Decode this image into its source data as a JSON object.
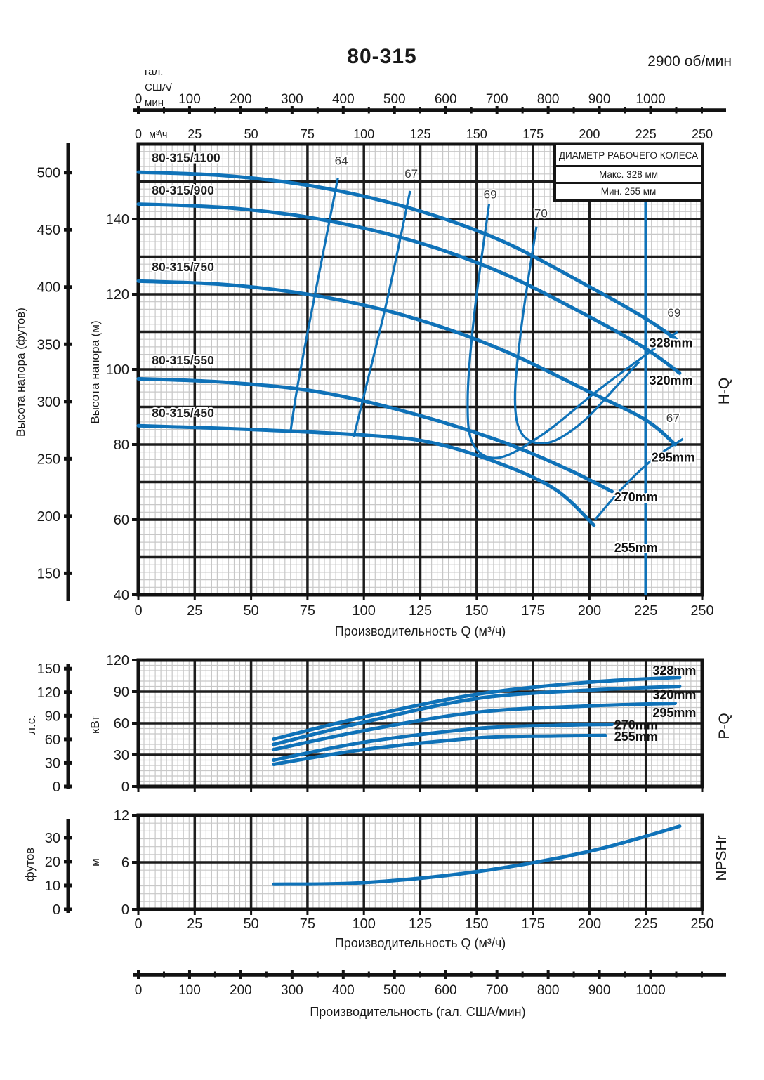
{
  "header": {
    "title": "80-315",
    "rpm": "2900 об/мин"
  },
  "legend": {
    "title": "ДИАМЕТР РАБОЧЕГО КОЛЕСА",
    "max": "Макс. 328 мм",
    "min": "Мин. 255 мм"
  },
  "colors": {
    "curve": "#0f72b8",
    "grid_major": "#1d1d1d",
    "grid_minor": "#c8c8c8",
    "frame": "#121212",
    "text": "#1a1a1a",
    "eff_label": "#3a3a3a"
  },
  "top_axis": {
    "unit_lines": [
      "гал.",
      "США/",
      "мин"
    ],
    "ticks": [
      0,
      100,
      200,
      300,
      400,
      500,
      600,
      700,
      800,
      900,
      1000
    ]
  },
  "m3h_row": {
    "zero": "0",
    "unit": "м³\\ч",
    "ticks": [
      25,
      50,
      75,
      100,
      125,
      150,
      175,
      200,
      225,
      250
    ]
  },
  "axis_titles": {
    "q_m3h": "Производительность Q (м³/ч)"
  },
  "bottom_axis": {
    "ticks": [
      0,
      100,
      200,
      300,
      400,
      500,
      600,
      700,
      800,
      900,
      1000
    ],
    "title": "Производительность (гал. США/мин)"
  },
  "chart_data": [
    {
      "id": "hq",
      "type": "line",
      "side_label": "H-Q",
      "xlabel": "Производительность Q (м³/ч)",
      "x_range": [
        0,
        250
      ],
      "x_ticks": [
        0,
        25,
        50,
        75,
        100,
        125,
        150,
        175,
        200,
        225,
        250
      ],
      "ylabel": "Высота напора (м)",
      "y_range": [
        40,
        160
      ],
      "y_ticks": [
        40,
        60,
        80,
        100,
        120,
        140
      ],
      "y2label": "Высота напора (футов)",
      "y2_ticks": [
        150,
        200,
        250,
        300,
        350,
        400,
        450,
        500
      ],
      "rated_flow": 225,
      "series": [
        {
          "model": "80-315/1100",
          "diameter": "328mm",
          "points": [
            [
              0,
              152.5
            ],
            [
              40,
              151.5
            ],
            [
              80,
              148.5
            ],
            [
              120,
              143
            ],
            [
              160,
              134.5
            ],
            [
              200,
              122
            ],
            [
              225,
              113.5
            ],
            [
              242,
              106.5
            ]
          ],
          "model_label_at": [
            6,
            155.2
          ],
          "dia_label_at": [
            226.5,
            107
          ]
        },
        {
          "model": "80-315/900",
          "diameter": "320mm",
          "points": [
            [
              0,
              144
            ],
            [
              40,
              143
            ],
            [
              80,
              140
            ],
            [
              120,
              134.5
            ],
            [
              160,
              126
            ],
            [
              200,
              114
            ],
            [
              225,
              105.5
            ],
            [
              240,
              99
            ]
          ],
          "model_label_at": [
            6,
            146.5
          ],
          "dia_label_at": [
            226.5,
            97
          ]
        },
        {
          "model": "80-315/750",
          "diameter": "295mm",
          "points": [
            [
              0,
              123.5
            ],
            [
              40,
              122.5
            ],
            [
              80,
              119.5
            ],
            [
              120,
              114
            ],
            [
              160,
              105.5
            ],
            [
              200,
              94
            ],
            [
              225,
              86.5
            ],
            [
              238,
              80
            ]
          ],
          "model_label_at": [
            6,
            126.2
          ],
          "dia_label_at": [
            227.5,
            76.5
          ]
        },
        {
          "model": "80-315/550",
          "diameter": "270mm",
          "points": [
            [
              0,
              97.5
            ],
            [
              40,
              96.5
            ],
            [
              80,
              94
            ],
            [
              120,
              88.5
            ],
            [
              160,
              81
            ],
            [
              190,
              73.5
            ],
            [
              210,
              67.5
            ]
          ],
          "model_label_at": [
            6,
            101.3
          ],
          "dia_label_at": [
            211,
            66
          ]
        },
        {
          "model": "80-315/450",
          "diameter": "255mm",
          "points": [
            [
              0,
              85
            ],
            [
              50,
              84
            ],
            [
              100,
              82.5
            ],
            [
              130,
              80.5
            ],
            [
              160,
              75
            ],
            [
              185,
              68
            ],
            [
              202,
              58.5
            ]
          ],
          "model_label_at": [
            6,
            87.3
          ],
          "dia_label_at": [
            211,
            52.5
          ]
        }
      ],
      "efficiency": [
        {
          "label": "64",
          "label_at": [
            90,
            154.5
          ],
          "points": [
            [
              88.5,
              151
            ],
            [
              79,
              122
            ],
            [
              71,
              97
            ],
            [
              67.5,
              83.5
            ]
          ]
        },
        {
          "label": "67",
          "label_at": [
            121,
            151
          ],
          "points": [
            [
              120.5,
              147.5
            ],
            [
              110.5,
              119
            ],
            [
              100,
              93
            ],
            [
              95.5,
              82
            ]
          ]
        },
        {
          "label": "69",
          "label_at": [
            156,
            145.5
          ],
          "points": [
            [
              155.5,
              144
            ],
            [
              149,
              115
            ],
            [
              146,
              92
            ],
            [
              148.5,
              80
            ],
            [
              160,
              76.5
            ],
            [
              180,
              83
            ],
            [
              205,
              95
            ],
            [
              239,
              110
            ]
          ]
        },
        {
          "label": "70",
          "label_at": [
            178.5,
            140.5
          ],
          "points": [
            [
              176.5,
              138
            ],
            [
              170,
              112
            ],
            [
              167,
              92
            ],
            [
              170.5,
              82.5
            ],
            [
              182,
              80.5
            ],
            [
              197,
              86
            ],
            [
              212,
              95.5
            ],
            [
              222,
              102
            ]
          ]
        },
        {
          "label": "69",
          "label_at": [
            237.5,
            114
          ],
          "points": []
        },
        {
          "label": "67",
          "label_at": [
            237,
            86
          ],
          "points": [
            [
              202.5,
              60
            ],
            [
              214,
              68
            ],
            [
              228,
              76
            ],
            [
              241.5,
              81.5
            ]
          ]
        }
      ]
    },
    {
      "id": "pq",
      "type": "line",
      "side_label": "P-Q",
      "x_range": [
        0,
        250
      ],
      "x_ticks": [
        0,
        25,
        50,
        75,
        100,
        125,
        150,
        175,
        200,
        225,
        250
      ],
      "ylabel": "кВт",
      "y_range": [
        0,
        120
      ],
      "y_ticks": [
        0,
        30,
        60,
        90,
        120
      ],
      "y2label": "л.с.",
      "y2_ticks": [
        0,
        30,
        60,
        90,
        120,
        150
      ],
      "series": [
        {
          "diameter": "328mm",
          "points": [
            [
              60,
              45
            ],
            [
              100,
              66
            ],
            [
              150,
              87.5
            ],
            [
              200,
              99
            ],
            [
              240,
              103.5
            ]
          ],
          "dia_label_at": [
            228,
            110
          ]
        },
        {
          "diameter": "320mm",
          "points": [
            [
              60,
              40
            ],
            [
              100,
              61
            ],
            [
              150,
              83.5
            ],
            [
              200,
              91.5
            ],
            [
              240,
              95
            ]
          ],
          "dia_label_at": [
            228,
            87
          ]
        },
        {
          "diameter": "295mm",
          "points": [
            [
              60,
              35
            ],
            [
              100,
              53
            ],
            [
              150,
              70.5
            ],
            [
              200,
              76.5
            ],
            [
              238,
              79
            ]
          ],
          "dia_label_at": [
            228,
            70
          ]
        },
        {
          "diameter": "270mm",
          "points": [
            [
              60,
              25
            ],
            [
              100,
              42
            ],
            [
              150,
              55
            ],
            [
              185,
              58
            ],
            [
              210,
              59
            ]
          ],
          "dia_label_at": [
            211,
            58.5
          ]
        },
        {
          "diameter": "255mm",
          "points": [
            [
              60,
              21
            ],
            [
              100,
              35
            ],
            [
              150,
              46
            ],
            [
              185,
              48
            ],
            [
              207,
              48.5
            ]
          ],
          "dia_label_at": [
            211,
            47.5
          ]
        }
      ]
    },
    {
      "id": "npsh",
      "type": "line",
      "side_label": "NPSHr",
      "xlabel": "Производительность Q (м³/ч)",
      "x_range": [
        0,
        250
      ],
      "x_ticks": [
        0,
        25,
        50,
        75,
        100,
        125,
        150,
        175,
        200,
        225,
        250
      ],
      "ylabel": "м",
      "y_range": [
        0,
        12
      ],
      "y_ticks": [
        0,
        6,
        12
      ],
      "y2label": "футов",
      "y2_ticks": [
        0,
        10,
        20,
        30
      ],
      "series": [
        {
          "name": "NPSHr",
          "points": [
            [
              60,
              3.2
            ],
            [
              100,
              3.4
            ],
            [
              150,
              4.8
            ],
            [
              200,
              7.4
            ],
            [
              240,
              10.6
            ]
          ]
        }
      ]
    }
  ]
}
